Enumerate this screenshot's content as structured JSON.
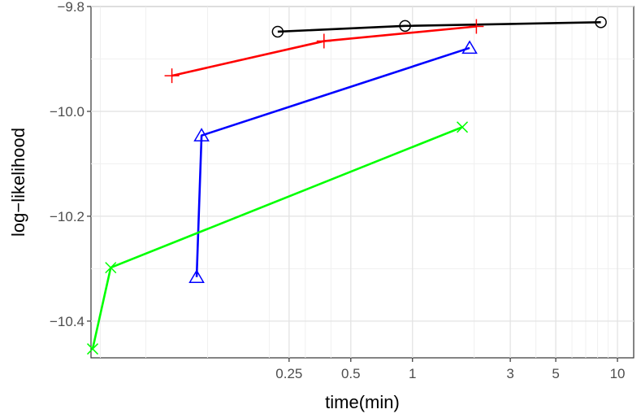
{
  "chart_data": {
    "type": "line",
    "title": "",
    "xlabel": "time(min)",
    "ylabel": "log−likelihood",
    "x_scale": "log",
    "x_unit": "min",
    "xlim": [
      0.027,
      12.0
    ],
    "ylim": [
      -10.47,
      -9.8
    ],
    "grid": true,
    "legend": "none",
    "x_ticks": [
      {
        "value": 0.25,
        "label": "0.25"
      },
      {
        "value": 0.5,
        "label": "0.5"
      },
      {
        "value": 1,
        "label": "1"
      },
      {
        "value": 3,
        "label": "3"
      },
      {
        "value": 5,
        "label": "5"
      },
      {
        "value": 10,
        "label": "10"
      }
    ],
    "x_minor_grid": [
      0.03,
      0.05,
      0.1,
      0.2,
      0.3,
      0.4,
      2,
      4,
      6,
      7,
      8,
      9
    ],
    "y_ticks": [
      {
        "value": -9.8,
        "label": "−9.8"
      },
      {
        "value": -10.0,
        "label": "−10.0"
      },
      {
        "value": -10.2,
        "label": "−10.2"
      },
      {
        "value": -10.4,
        "label": "−10.4"
      }
    ],
    "y_minor_grid": [
      -9.9,
      -10.1,
      -10.3
    ],
    "series": [
      {
        "color": "#000000",
        "marker": "circle",
        "x": [
          0.22,
          0.92,
          8.3
        ],
        "y": [
          -9.848,
          -9.837,
          -9.83
        ]
      },
      {
        "color": "#ff0000",
        "marker": "plus",
        "x": [
          0.067,
          0.37,
          2.05
        ],
        "y": [
          -9.932,
          -9.866,
          -9.838
        ]
      },
      {
        "color": "#0000ff",
        "marker": "triangle",
        "x": [
          0.0885,
          0.0935,
          1.9
        ],
        "y": [
          -10.316,
          -10.046,
          -9.879
        ]
      },
      {
        "color": "#00ff00",
        "marker": "cross",
        "x": [
          0.0275,
          0.0337,
          1.75
        ],
        "y": [
          -10.453,
          -10.298,
          -10.03
        ]
      }
    ]
  }
}
